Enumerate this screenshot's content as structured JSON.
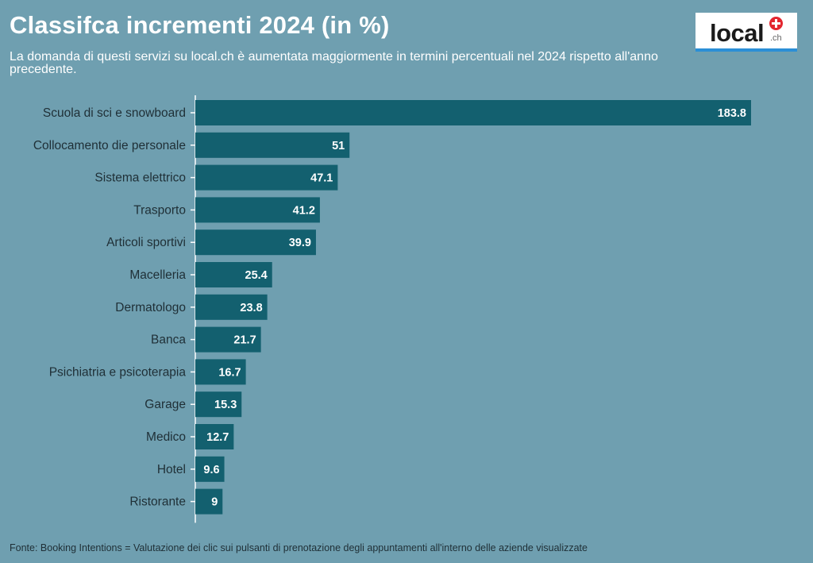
{
  "header": {
    "title": "Classifca incrementi 2024 (in %)",
    "subtitle": "La domanda di questi servizi su local.ch è aumentata maggiormente in termini percentuali nel 2024 rispetto all'anno precedente."
  },
  "logo": {
    "word": "local",
    "suffix": ".ch",
    "icon": "swiss-cross-icon",
    "colors": {
      "badge": "#e3262f",
      "underline": "#2b8fd6"
    }
  },
  "chart_data": {
    "type": "bar",
    "orientation": "horizontal",
    "categories": [
      "Scuola di sci e snowboard",
      "Collocamento die personale",
      "Sistema elettrico",
      "Trasporto",
      "Articoli sportivi",
      "Macelleria",
      "Dermatologo",
      "Banca",
      "Psichiatria e psicoterapia",
      "Garage",
      "Medico",
      "Hotel",
      "Ristorante"
    ],
    "values": [
      183.8,
      51,
      47.1,
      41.2,
      39.9,
      25.4,
      23.8,
      21.7,
      16.7,
      15.3,
      12.7,
      9.6,
      9
    ],
    "xlim": [
      0,
      183.8
    ],
    "grid": false,
    "legend": "none",
    "colors": {
      "bar": "#13606f",
      "background": "#6f9fb0",
      "axis": "#ffffff"
    }
  },
  "footer": {
    "source": "Fonte: Booking Intentions = Valutazione dei clic sui pulsanti di prenotazione degli appuntamenti all'interno delle aziende visualizzate"
  }
}
